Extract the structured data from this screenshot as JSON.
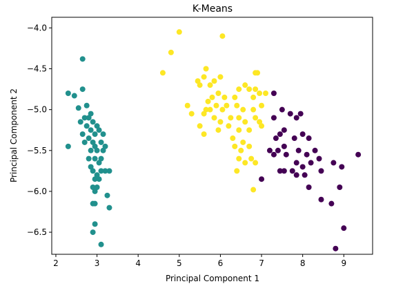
{
  "chart_data": {
    "type": "scatter",
    "title": "K-Means",
    "xlabel": "Principal Component 1",
    "ylabel": "Principal Component 2",
    "xlim": [
      1.9,
      9.7
    ],
    "ylim": [
      -6.77,
      -3.87
    ],
    "xticks": [
      2,
      3,
      4,
      5,
      6,
      7,
      8,
      9
    ],
    "yticks": [
      -4.0,
      -4.5,
      -5.0,
      -5.5,
      -6.0,
      -6.5
    ],
    "xtick_labels": [
      "2",
      "3",
      "4",
      "5",
      "6",
      "7",
      "8",
      "9"
    ],
    "ytick_labels": [
      "−4.0",
      "−4.5",
      "−5.0",
      "−5.5",
      "−6.0",
      "−6.5"
    ],
    "grid": false,
    "legend": "none",
    "colormap": "viridis",
    "series": [
      {
        "color": "#440154",
        "points": [
          [
            7.3,
            -4.8
          ],
          [
            7.5,
            -5.0
          ],
          [
            7.3,
            -5.1
          ],
          [
            7.7,
            -5.05
          ],
          [
            7.85,
            -5.1
          ],
          [
            7.95,
            -5.05
          ],
          [
            7.55,
            -5.25
          ],
          [
            7.45,
            -5.3
          ],
          [
            7.35,
            -5.35
          ],
          [
            7.55,
            -5.45
          ],
          [
            7.4,
            -5.5
          ],
          [
            7.6,
            -5.55
          ],
          [
            7.8,
            -5.35
          ],
          [
            8.0,
            -5.3
          ],
          [
            8.15,
            -5.35
          ],
          [
            7.9,
            -5.5
          ],
          [
            8.1,
            -5.55
          ],
          [
            8.3,
            -5.5
          ],
          [
            7.85,
            -5.65
          ],
          [
            8.0,
            -5.7
          ],
          [
            8.2,
            -5.65
          ],
          [
            8.4,
            -5.6
          ],
          [
            7.55,
            -5.75
          ],
          [
            7.45,
            -5.75
          ],
          [
            7.75,
            -5.75
          ],
          [
            8.05,
            -5.8
          ],
          [
            8.45,
            -5.75
          ],
          [
            8.75,
            -5.65
          ],
          [
            8.95,
            -5.7
          ],
          [
            9.35,
            -5.55
          ],
          [
            8.15,
            -5.95
          ],
          [
            8.9,
            -5.95
          ],
          [
            8.45,
            -6.1
          ],
          [
            8.7,
            -6.15
          ],
          [
            9.0,
            -6.45
          ],
          [
            8.8,
            -6.7
          ],
          [
            7.3,
            -5.55
          ],
          [
            7.2,
            -5.5
          ],
          [
            7.0,
            -5.85
          ],
          [
            7.85,
            -5.8
          ]
        ]
      },
      {
        "color": "#21908d",
        "points": [
          [
            2.65,
            -4.38
          ],
          [
            2.3,
            -4.8
          ],
          [
            2.45,
            -4.83
          ],
          [
            2.65,
            -4.75
          ],
          [
            2.55,
            -4.98
          ],
          [
            2.75,
            -4.95
          ],
          [
            2.85,
            -5.05
          ],
          [
            2.7,
            -5.1
          ],
          [
            2.8,
            -5.1
          ],
          [
            2.9,
            -5.15
          ],
          [
            2.6,
            -5.15
          ],
          [
            2.75,
            -5.2
          ],
          [
            3.0,
            -5.2
          ],
          [
            2.85,
            -5.25
          ],
          [
            2.65,
            -5.3
          ],
          [
            2.95,
            -5.3
          ],
          [
            3.05,
            -5.25
          ],
          [
            3.15,
            -5.3
          ],
          [
            2.7,
            -5.4
          ],
          [
            2.9,
            -5.4
          ],
          [
            3.1,
            -5.4
          ],
          [
            3.2,
            -5.45
          ],
          [
            2.3,
            -5.45
          ],
          [
            2.85,
            -5.5
          ],
          [
            3.0,
            -5.5
          ],
          [
            3.15,
            -5.5
          ],
          [
            2.8,
            -5.6
          ],
          [
            2.95,
            -5.6
          ],
          [
            3.05,
            -5.65
          ],
          [
            2.85,
            -5.7
          ],
          [
            2.9,
            -5.75
          ],
          [
            3.1,
            -5.75
          ],
          [
            3.2,
            -5.75
          ],
          [
            3.3,
            -5.75
          ],
          [
            2.95,
            -5.85
          ],
          [
            3.05,
            -5.85
          ],
          [
            2.9,
            -5.95
          ],
          [
            3.0,
            -5.95
          ],
          [
            2.95,
            -6.0
          ],
          [
            3.25,
            -6.05
          ],
          [
            2.9,
            -6.15
          ],
          [
            2.95,
            -6.15
          ],
          [
            3.3,
            -6.2
          ],
          [
            2.95,
            -6.4
          ],
          [
            2.9,
            -6.5
          ],
          [
            3.1,
            -6.65
          ],
          [
            2.95,
            -5.45
          ],
          [
            3.1,
            -5.6
          ],
          [
            2.8,
            -5.35
          ],
          [
            3.0,
            -5.8
          ]
        ]
      },
      {
        "color": "#fde725",
        "points": [
          [
            5.0,
            -4.05
          ],
          [
            6.05,
            -4.1
          ],
          [
            4.8,
            -4.3
          ],
          [
            4.6,
            -4.55
          ],
          [
            5.65,
            -4.5
          ],
          [
            6.0,
            -4.6
          ],
          [
            5.6,
            -4.6
          ],
          [
            5.45,
            -4.65
          ],
          [
            5.5,
            -4.7
          ],
          [
            5.75,
            -4.7
          ],
          [
            5.85,
            -4.65
          ],
          [
            6.85,
            -4.55
          ],
          [
            6.9,
            -4.55
          ],
          [
            6.6,
            -4.7
          ],
          [
            6.7,
            -4.75
          ],
          [
            6.45,
            -4.75
          ],
          [
            6.85,
            -4.75
          ],
          [
            6.95,
            -4.8
          ],
          [
            7.1,
            -4.8
          ],
          [
            5.95,
            -4.8
          ],
          [
            5.8,
            -4.85
          ],
          [
            6.1,
            -4.85
          ],
          [
            6.35,
            -4.85
          ],
          [
            6.15,
            -4.95
          ],
          [
            6.8,
            -4.85
          ],
          [
            5.7,
            -4.9
          ],
          [
            5.9,
            -4.95
          ],
          [
            5.75,
            -5.0
          ],
          [
            5.65,
            -5.0
          ],
          [
            6.05,
            -5.0
          ],
          [
            6.4,
            -4.95
          ],
          [
            6.55,
            -5.0
          ],
          [
            6.8,
            -5.0
          ],
          [
            7.0,
            -4.95
          ],
          [
            5.2,
            -4.95
          ],
          [
            5.3,
            -5.05
          ],
          [
            6.25,
            -5.1
          ],
          [
            6.45,
            -5.1
          ],
          [
            6.6,
            -5.15
          ],
          [
            6.85,
            -5.1
          ],
          [
            6.95,
            -5.15
          ],
          [
            7.0,
            -5.2
          ],
          [
            5.6,
            -5.05
          ],
          [
            5.85,
            -5.1
          ],
          [
            5.5,
            -5.2
          ],
          [
            5.95,
            -5.25
          ],
          [
            5.6,
            -5.3
          ],
          [
            6.2,
            -5.2
          ],
          [
            6.45,
            -5.25
          ],
          [
            6.7,
            -5.25
          ],
          [
            6.3,
            -5.35
          ],
          [
            6.55,
            -5.4
          ],
          [
            6.5,
            -5.5
          ],
          [
            6.7,
            -5.45
          ],
          [
            6.45,
            -5.6
          ],
          [
            6.6,
            -5.65
          ],
          [
            6.75,
            -5.6
          ],
          [
            6.85,
            -5.65
          ],
          [
            6.4,
            -5.75
          ],
          [
            6.8,
            -5.98
          ],
          [
            6.35,
            -5.45
          ],
          [
            6.0,
            -5.15
          ]
        ]
      }
    ]
  }
}
